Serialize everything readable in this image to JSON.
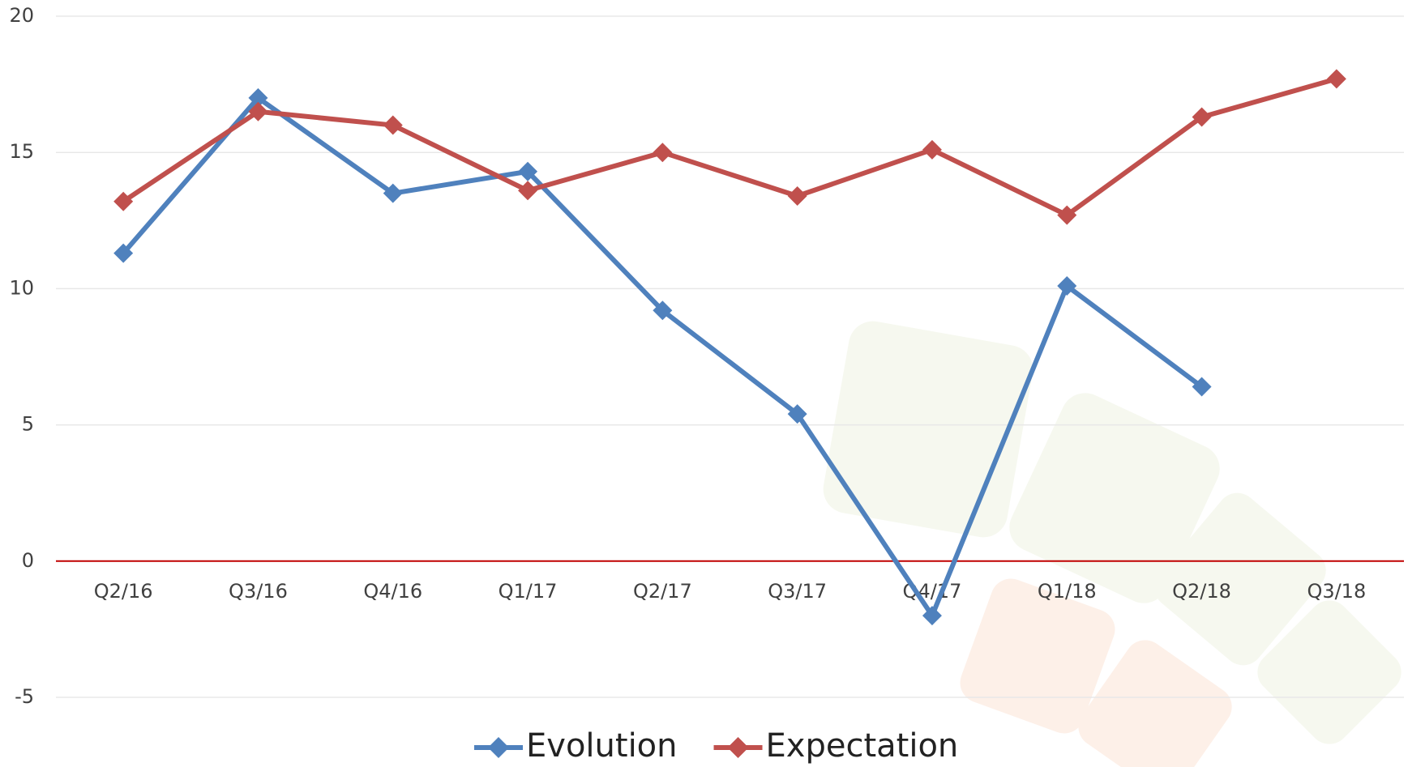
{
  "chart_data": {
    "type": "line",
    "categories": [
      "Q2/16",
      "Q3/16",
      "Q4/16",
      "Q1/17",
      "Q2/17",
      "Q3/17",
      "Q4/17",
      "Q1/18",
      "Q2/18",
      "Q3/18"
    ],
    "series": [
      {
        "name": "Evolution",
        "color": "#4f81bd",
        "values": [
          11.3,
          17.0,
          13.5,
          14.3,
          9.2,
          5.4,
          -2.0,
          10.1,
          6.4,
          null
        ]
      },
      {
        "name": "Expectation",
        "color": "#c0504d",
        "values": [
          13.2,
          16.5,
          16.0,
          13.6,
          15.0,
          13.4,
          15.1,
          12.7,
          16.3,
          17.7
        ]
      }
    ],
    "ylim": [
      -5,
      20
    ],
    "yticks": [
      -5,
      0,
      5,
      10,
      15,
      20
    ],
    "grid": true,
    "legend": "bottom"
  }
}
